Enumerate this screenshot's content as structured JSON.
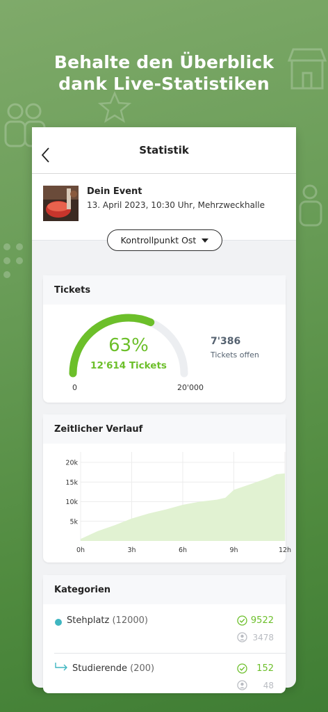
{
  "headline": {
    "line1": "Behalte den Überblick",
    "line2": "dank Live-Statistiken"
  },
  "nav": {
    "title": "Statistik",
    "back_icon": "chevron-left-icon"
  },
  "event": {
    "name": "Dein Event",
    "date": "13. April 2023, 10:30 Uhr, Mehrzweckhalle"
  },
  "selector": {
    "label": "Kontrollpunkt Ost",
    "icon": "caret-down-icon"
  },
  "tickets_card": {
    "title": "Tickets",
    "percent_label": "63%",
    "percent_value": 0.63,
    "scanned_label": "12'614 Tickets",
    "gauge_min": "0",
    "gauge_max": "20'000",
    "open_count": "7'386",
    "open_label": "Tickets offen",
    "accent_color": "#6cbf2a"
  },
  "timeline_card": {
    "title": "Zeitlicher Verlauf"
  },
  "chart_data": {
    "type": "area",
    "title": "Zeitlicher Verlauf",
    "x_tick_labels": [
      "0h",
      "3h",
      "6h",
      "9h",
      "12h"
    ],
    "y_tick_labels": [
      "5k",
      "10k",
      "15k",
      "20k"
    ],
    "xlim": [
      0,
      12
    ],
    "ylim": [
      0,
      20000
    ],
    "grid": true,
    "x": [
      0,
      0.5,
      1,
      2,
      3,
      4,
      5,
      6,
      7,
      8,
      8.5,
      9,
      10,
      11,
      11.5,
      12
    ],
    "values": [
      500,
      1500,
      2500,
      4000,
      5700,
      7000,
      8000,
      9200,
      10000,
      10500,
      11000,
      13000,
      14500,
      16000,
      17000,
      17200
    ],
    "fill_color": "#e1f2d2"
  },
  "categories_card": {
    "title": "Kategorien",
    "items": [
      {
        "name": "Stehplatz",
        "count": "(12000)",
        "checked_in": "9522",
        "open": "3478",
        "marker": "dot",
        "color": "#3fb6c1"
      },
      {
        "name": "Studierende",
        "count": "(200)",
        "checked_in": "152",
        "open": "48",
        "marker": "arrow-right-icon",
        "color": "#3fb6c1"
      }
    ]
  }
}
